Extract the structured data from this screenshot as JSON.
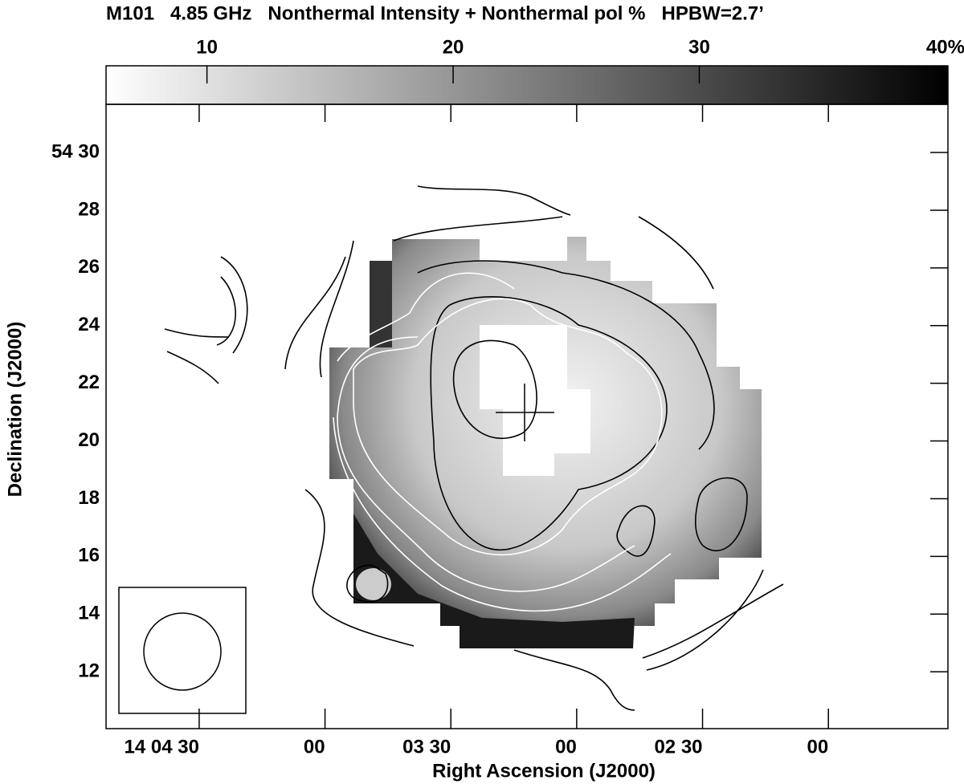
{
  "chart_data": {
    "type": "image",
    "title": "M101   4.85 GHz   Nonthermal Intensity + Nonthermal pol %   HPBW=2.7’",
    "x_label": "Right Ascension (J2000)",
    "y_label": "Declination (J2000)",
    "xlim": [
      292.2,
      91.5
    ],
    "xticks": [
      {
        "value": 270,
        "label": "14 04 30"
      },
      {
        "value": 240,
        "label": "00"
      },
      {
        "value": 210,
        "label": "03 30"
      },
      {
        "value": 180,
        "label": "00"
      },
      {
        "value": 150,
        "label": "02 30"
      },
      {
        "value": 120,
        "label": "00"
      }
    ],
    "ylim": [
      10.03,
      31.67
    ],
    "yticks": [
      {
        "value": 30,
        "label": "54 30"
      },
      28,
      26,
      24,
      22,
      20,
      18,
      16,
      14,
      12
    ],
    "colorbar_lim": [
      5.9,
      40.1
    ],
    "colorbar_ticks": [
      10,
      20,
      30,
      {
        "value": 40,
        "label": "40%"
      }
    ]
  }
}
